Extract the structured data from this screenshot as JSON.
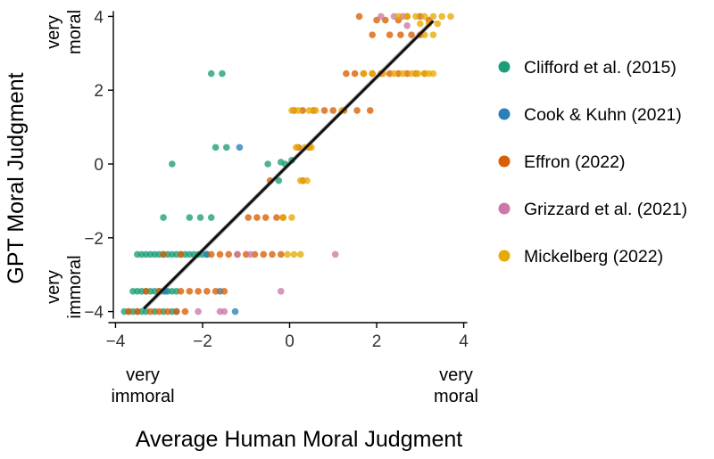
{
  "chart_data": {
    "type": "scatter",
    "xlabel": "Average Human Moral Judgment",
    "ylabel": "GPT Moral Judgment",
    "xlim": [
      -4.05,
      4.05
    ],
    "ylim": [
      -4.3,
      4.3
    ],
    "x_ticks": [
      -4,
      -2,
      0,
      2,
      4
    ],
    "x_tick_labels": [
      "−4",
      "−2",
      "0",
      "2",
      "4"
    ],
    "y_ticks": [
      -4,
      -2,
      0,
      2,
      4
    ],
    "y_tick_labels": [
      "−4",
      "−2",
      "0",
      "2",
      "4"
    ],
    "x_anchor_labels": {
      "left": [
        "very",
        "immoral"
      ],
      "right": [
        "very",
        "moral"
      ]
    },
    "y_anchor_labels": {
      "top": [
        "very",
        "moral"
      ],
      "bottom": [
        "very",
        "immoral"
      ]
    },
    "legend_position": "right",
    "grid": false,
    "fit_line": {
      "x": [
        -3.35,
        3.3
      ],
      "y": [
        -3.92,
        3.88
      ],
      "color": "#111111",
      "band_color": "#a6a6a6"
    },
    "series": [
      {
        "name": "Clifford et al. (2015)",
        "color": "#1b9e77",
        "points": [
          [
            -1.8,
            2.45
          ],
          [
            -1.55,
            2.45
          ],
          [
            -2.7,
            0
          ],
          [
            -1.7,
            0.45
          ],
          [
            -1.45,
            0.45
          ],
          [
            -2.9,
            -1.45
          ],
          [
            -2.3,
            -1.45
          ],
          [
            -2.05,
            -1.45
          ],
          [
            -1.8,
            -1.45
          ],
          [
            -0.5,
            0
          ],
          [
            -0.25,
            -0.45
          ],
          [
            -0.2,
            0.05
          ],
          [
            -0.1,
            0
          ],
          [
            0.05,
            0.1
          ],
          [
            -3.5,
            -2.45
          ],
          [
            -3.4,
            -2.45
          ],
          [
            -3.3,
            -2.45
          ],
          [
            -3.2,
            -2.45
          ],
          [
            -3.1,
            -2.45
          ],
          [
            -3.0,
            -2.45
          ],
          [
            -2.9,
            -2.45
          ],
          [
            -2.8,
            -2.45
          ],
          [
            -2.7,
            -2.45
          ],
          [
            -2.6,
            -2.45
          ],
          [
            -2.5,
            -2.45
          ],
          [
            -2.4,
            -2.45
          ],
          [
            -2.3,
            -2.45
          ],
          [
            -2.2,
            -2.45
          ],
          [
            -2.1,
            -2.45
          ],
          [
            -2.0,
            -2.45
          ],
          [
            -1.9,
            -2.45
          ],
          [
            -3.6,
            -3.45
          ],
          [
            -3.5,
            -3.45
          ],
          [
            -3.4,
            -3.45
          ],
          [
            -3.3,
            -3.45
          ],
          [
            -3.2,
            -3.45
          ],
          [
            -3.1,
            -3.45
          ],
          [
            -3.0,
            -3.45
          ],
          [
            -2.9,
            -3.45
          ],
          [
            -2.8,
            -3.45
          ],
          [
            -2.7,
            -3.45
          ],
          [
            -2.6,
            -3.45
          ],
          [
            -3.8,
            -4.0
          ],
          [
            -3.7,
            -4.0
          ],
          [
            -3.6,
            -4.0
          ],
          [
            -3.5,
            -4.0
          ],
          [
            -3.4,
            -4.0
          ],
          [
            -3.3,
            -4.0
          ],
          [
            -3.1,
            -4.0
          ],
          [
            -2.9,
            -4.0
          ],
          [
            -2.7,
            -4.0
          ]
        ]
      },
      {
        "name": "Cook & Kuhn (2021)",
        "color": "#2c7fb8",
        "points": [
          [
            -1.15,
            0.45
          ],
          [
            -1.9,
            -2.45
          ],
          [
            -2.85,
            -3.45
          ],
          [
            -1.6,
            -3.45
          ],
          [
            -1.25,
            -4.0
          ],
          [
            -2.6,
            -4.0
          ]
        ]
      },
      {
        "name": "Effron (2022)",
        "color": "#d95f02",
        "points": [
          [
            1.6,
            4.0
          ],
          [
            2.0,
            3.9
          ],
          [
            2.2,
            3.9
          ],
          [
            2.5,
            3.9
          ],
          [
            2.7,
            4.0
          ],
          [
            3.0,
            4.0
          ],
          [
            3.2,
            3.9
          ],
          [
            1.9,
            3.5
          ],
          [
            2.3,
            3.5
          ],
          [
            2.55,
            3.5
          ],
          [
            2.8,
            3.5
          ],
          [
            3.0,
            3.5
          ],
          [
            1.3,
            2.45
          ],
          [
            1.5,
            2.45
          ],
          [
            1.7,
            2.45
          ],
          [
            1.9,
            2.45
          ],
          [
            2.1,
            2.45
          ],
          [
            2.3,
            2.45
          ],
          [
            2.5,
            2.45
          ],
          [
            2.7,
            2.45
          ],
          [
            2.9,
            2.45
          ],
          [
            3.1,
            2.45
          ],
          [
            0.1,
            1.45
          ],
          [
            0.3,
            1.45
          ],
          [
            0.55,
            1.45
          ],
          [
            0.8,
            1.45
          ],
          [
            1.0,
            1.45
          ],
          [
            1.25,
            1.45
          ],
          [
            1.55,
            1.45
          ],
          [
            1.85,
            1.45
          ],
          [
            0.2,
            0.45
          ],
          [
            0.45,
            0.45
          ],
          [
            0.3,
            -0.45
          ],
          [
            -0.45,
            -0.45
          ],
          [
            -0.95,
            -1.45
          ],
          [
            -0.75,
            -1.45
          ],
          [
            -0.55,
            -1.45
          ],
          [
            -0.3,
            -1.45
          ],
          [
            -0.15,
            -1.45
          ],
          [
            -1.8,
            -2.45
          ],
          [
            -1.6,
            -2.45
          ],
          [
            -1.4,
            -2.45
          ],
          [
            -1.2,
            -2.45
          ],
          [
            -1.0,
            -2.45
          ],
          [
            -0.8,
            -2.45
          ],
          [
            -0.6,
            -2.45
          ],
          [
            -0.4,
            -2.45
          ],
          [
            -0.2,
            -2.45
          ],
          [
            -2.5,
            -2.45
          ],
          [
            -2.9,
            -2.45
          ],
          [
            -2.5,
            -3.45
          ],
          [
            -2.3,
            -3.45
          ],
          [
            -2.1,
            -3.45
          ],
          [
            -1.9,
            -3.45
          ],
          [
            -1.7,
            -3.45
          ],
          [
            -1.5,
            -3.45
          ],
          [
            -3.3,
            -3.45
          ],
          [
            -3.0,
            -3.45
          ],
          [
            -3.7,
            -4.0
          ],
          [
            -3.5,
            -4.0
          ],
          [
            -3.2,
            -4.0
          ],
          [
            -3.0,
            -4.0
          ],
          [
            -2.8,
            -4.0
          ],
          [
            -2.6,
            -4.0
          ],
          [
            -2.4,
            -4.0
          ]
        ]
      },
      {
        "name": "Grizzard et al. (2021)",
        "color": "#cc79a7",
        "points": [
          [
            2.1,
            4.0
          ],
          [
            2.4,
            4.0
          ],
          [
            2.6,
            4.0
          ],
          [
            2.7,
            3.75
          ],
          [
            1.05,
            -2.45
          ],
          [
            -0.2,
            -3.45
          ],
          [
            -1.6,
            -4.0
          ],
          [
            -1.5,
            -4.0
          ],
          [
            -2.1,
            -4.0
          ],
          [
            -1.2,
            -2.45
          ],
          [
            -0.9,
            -2.45
          ]
        ]
      },
      {
        "name": "Mickelberg (2022)",
        "color": "#e6ab02",
        "points": [
          [
            2.5,
            4.0
          ],
          [
            2.7,
            4.0
          ],
          [
            2.9,
            4.0
          ],
          [
            3.1,
            4.0
          ],
          [
            3.3,
            4.0
          ],
          [
            3.5,
            4.0
          ],
          [
            3.7,
            4.0
          ],
          [
            3.0,
            3.8
          ],
          [
            3.2,
            3.8
          ],
          [
            3.4,
            3.8
          ],
          [
            3.1,
            3.5
          ],
          [
            3.3,
            3.5
          ],
          [
            1.7,
            2.45
          ],
          [
            1.9,
            2.45
          ],
          [
            2.15,
            2.45
          ],
          [
            2.4,
            2.45
          ],
          [
            2.6,
            2.45
          ],
          [
            2.8,
            2.45
          ],
          [
            2.95,
            2.45
          ],
          [
            3.1,
            2.45
          ],
          [
            3.2,
            2.45
          ],
          [
            3.3,
            2.45
          ],
          [
            0.05,
            1.45
          ],
          [
            0.2,
            1.45
          ],
          [
            0.45,
            1.45
          ],
          [
            0.6,
            1.45
          ],
          [
            1.2,
            1.45
          ],
          [
            0.15,
            0.45
          ],
          [
            0.35,
            0.45
          ],
          [
            0.5,
            0.45
          ],
          [
            0.25,
            -0.45
          ],
          [
            0.4,
            -0.45
          ],
          [
            -0.15,
            -1.45
          ],
          [
            0.05,
            -1.45
          ],
          [
            0.1,
            -2.45
          ],
          [
            0.25,
            -2.45
          ],
          [
            -0.05,
            -2.45
          ]
        ]
      }
    ]
  }
}
